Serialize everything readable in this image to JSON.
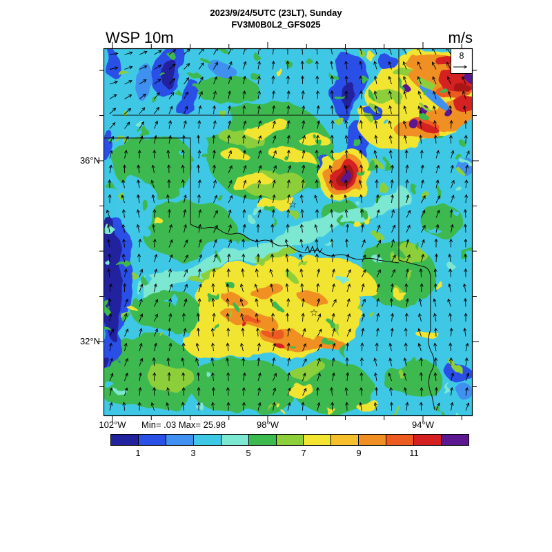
{
  "header": {
    "title_line1": "2023/9/24/5UTC (23LT), Sunday",
    "title_line2": "FV3M0B0L2_GFS025",
    "variable_label": "WSP 10m",
    "units_label": "m/s"
  },
  "map": {
    "lat_labels": [
      {
        "label": "36°N"
      },
      {
        "label": "32°N"
      }
    ],
    "lon_labels": [
      {
        "label": "102°W"
      },
      {
        "label": "98°W"
      },
      {
        "label": "94°W"
      }
    ],
    "minmax_label": "Min= .03 Max= 25.98",
    "reference_vector_label": "8"
  },
  "colorbar": {
    "tick_labels": [
      "1",
      "3",
      "5",
      "7",
      "9",
      "11"
    ],
    "colors": [
      "#22229e",
      "#2a50e6",
      "#3f90f0",
      "#3fc8e6",
      "#7ce8d2",
      "#3cb94f",
      "#8ccf3a",
      "#f2e531",
      "#f5c02c",
      "#f09024",
      "#ec5a20",
      "#d42020",
      "#5c1890"
    ]
  },
  "chart_data": {
    "type": "heatmap",
    "title": "2023/9/24/5UTC (23LT), Sunday",
    "subtitle": "FV3M0B0L2_GFS025",
    "variable": "WSP 10m",
    "units": "m/s",
    "stat_min": 0.03,
    "stat_max": 25.98,
    "colorbar_tick_values": [
      1,
      3,
      5,
      7,
      9,
      11
    ],
    "colorbar_value_range": [
      0,
      13
    ],
    "x_axis": {
      "tick_labels": [
        "102°W",
        "98°W",
        "94°W"
      ]
    },
    "y_axis": {
      "tick_labels": [
        "36°N",
        "32°N"
      ]
    },
    "overlay_wind_vectors": true,
    "reference_vector_value": 8,
    "legend_position": "bottom",
    "depicted_region": "South-central United States (Texas / Oklahoma state borders visible)"
  }
}
